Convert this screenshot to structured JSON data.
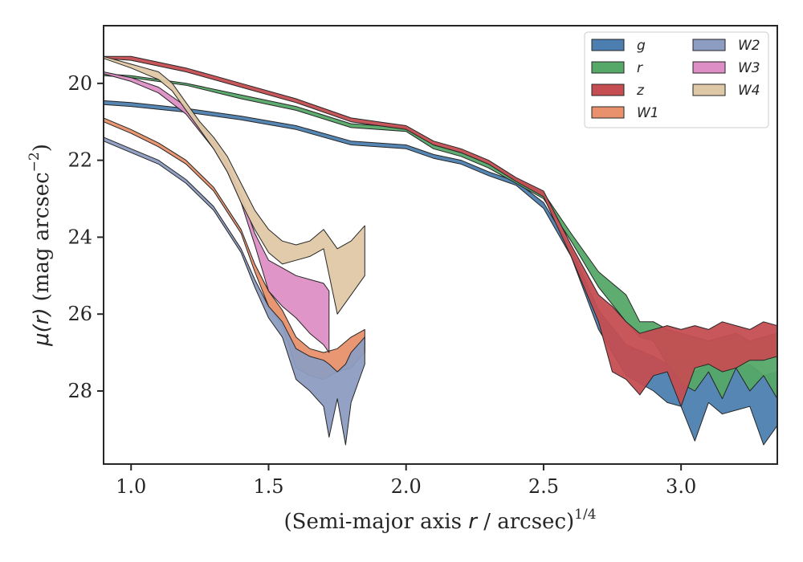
{
  "chart_data": {
    "type": "area",
    "xlabel_main": "(Semi-major axis ",
    "xlabel_var": "r",
    "xlabel_tail": " / arcsec)",
    "xlabel_sup": "1/4",
    "ylabel_main": "(mag arcsec",
    "ylabel_sup": "−2",
    "ylabel_close": ")",
    "ylabel_var": "μ(r)",
    "xlim": [
      0.9,
      3.35
    ],
    "ylim": [
      29.9,
      18.5
    ],
    "y_inverted": true,
    "xticks": [
      1.0,
      1.5,
      2.0,
      2.5,
      3.0
    ],
    "xtick_labels": [
      "1.0",
      "1.5",
      "2.0",
      "2.5",
      "3.0"
    ],
    "yticks": [
      20,
      22,
      24,
      26,
      28
    ],
    "ytick_labels": [
      "20",
      "22",
      "24",
      "26",
      "28"
    ],
    "grid": false,
    "legend_position": "top-right",
    "legend_columns": 2,
    "series": [
      {
        "name": "g",
        "color": "#4c7fb0",
        "x": [
          0.9,
          1.0,
          1.2,
          1.4,
          1.6,
          1.8,
          1.9,
          2.0,
          2.1,
          2.2,
          2.3,
          2.4,
          2.5,
          2.6,
          2.7,
          2.8,
          2.9,
          2.95,
          3.0,
          3.05,
          3.1,
          3.15,
          3.2,
          3.25,
          3.3,
          3.35
        ],
        "lower": [
          20.45,
          20.5,
          20.65,
          20.85,
          21.1,
          21.5,
          21.55,
          21.6,
          21.85,
          22.0,
          22.3,
          22.55,
          23.1,
          24.3,
          25.9,
          26.8,
          27.1,
          27.3,
          27.2,
          27.5,
          27.3,
          27.5,
          27.4,
          27.3,
          27.6,
          27.5
        ],
        "upper": [
          20.55,
          20.6,
          20.75,
          20.95,
          21.2,
          21.6,
          21.65,
          21.7,
          21.95,
          22.1,
          22.4,
          22.65,
          23.25,
          24.5,
          26.4,
          27.6,
          28.0,
          28.3,
          28.4,
          29.3,
          28.3,
          28.6,
          28.5,
          28.4,
          29.4,
          28.9
        ]
      },
      {
        "name": "r",
        "color": "#55a868",
        "x": [
          0.9,
          1.0,
          1.2,
          1.4,
          1.6,
          1.8,
          1.9,
          2.0,
          2.1,
          2.2,
          2.3,
          2.4,
          2.5,
          2.6,
          2.7,
          2.8,
          2.85,
          2.9,
          2.95,
          3.0,
          3.05,
          3.1,
          3.15,
          3.2,
          3.25,
          3.3,
          3.35
        ],
        "lower": [
          19.75,
          19.8,
          20.0,
          20.3,
          20.6,
          21.05,
          21.1,
          21.15,
          21.6,
          21.8,
          22.1,
          22.5,
          22.85,
          23.9,
          24.9,
          25.5,
          26.2,
          26.2,
          26.4,
          26.5,
          26.6,
          26.7,
          26.6,
          26.5,
          26.7,
          26.6,
          26.5
        ],
        "upper": [
          19.8,
          19.85,
          20.05,
          20.4,
          20.7,
          21.15,
          21.2,
          21.25,
          21.7,
          21.9,
          22.2,
          22.6,
          23.0,
          24.1,
          25.3,
          26.2,
          26.6,
          26.7,
          27.3,
          27.8,
          28.0,
          27.5,
          28.2,
          27.4,
          28.0,
          27.6,
          28.2
        ]
      },
      {
        "name": "z",
        "color": "#c44e52",
        "x": [
          0.9,
          1.0,
          1.2,
          1.4,
          1.6,
          1.8,
          1.9,
          2.0,
          2.1,
          2.2,
          2.3,
          2.4,
          2.5,
          2.6,
          2.7,
          2.75,
          2.8,
          2.85,
          2.9,
          2.95,
          3.0,
          3.05,
          3.1,
          3.15,
          3.2,
          3.25,
          3.3,
          3.35
        ],
        "lower": [
          19.3,
          19.3,
          19.6,
          20.0,
          20.4,
          20.9,
          21.0,
          21.1,
          21.5,
          21.7,
          22.0,
          22.45,
          22.8,
          24.2,
          25.5,
          25.8,
          26.2,
          26.5,
          26.4,
          26.3,
          26.4,
          26.3,
          26.4,
          26.2,
          26.3,
          26.4,
          26.2,
          26.3
        ],
        "upper": [
          19.35,
          19.4,
          19.7,
          20.1,
          20.5,
          21.0,
          21.1,
          21.2,
          21.6,
          21.8,
          22.1,
          22.55,
          22.95,
          24.5,
          26.2,
          27.5,
          27.7,
          28.1,
          27.6,
          27.5,
          28.4,
          27.4,
          27.3,
          27.5,
          27.4,
          27.2,
          27.2,
          27.1
        ]
      },
      {
        "name": "W1",
        "color": "#e8916c",
        "x": [
          0.9,
          1.0,
          1.1,
          1.2,
          1.3,
          1.4,
          1.45,
          1.5,
          1.55,
          1.6,
          1.65,
          1.7,
          1.75,
          1.8,
          1.85
        ],
        "lower": [
          20.9,
          21.2,
          21.55,
          22.0,
          22.7,
          23.8,
          24.7,
          25.4,
          25.9,
          26.6,
          26.9,
          27.0,
          26.9,
          26.6,
          26.4
        ],
        "upper": [
          21.0,
          21.3,
          21.65,
          22.1,
          22.8,
          23.9,
          24.9,
          25.8,
          26.3,
          27.4,
          27.6,
          27.7,
          27.5,
          27.4,
          27.0
        ]
      },
      {
        "name": "W2",
        "color": "#8d9cc1",
        "x": [
          0.9,
          1.0,
          1.1,
          1.2,
          1.3,
          1.4,
          1.45,
          1.5,
          1.55,
          1.6,
          1.65,
          1.7,
          1.72,
          1.75,
          1.78,
          1.8,
          1.85
        ],
        "lower": [
          21.4,
          21.7,
          22.0,
          22.5,
          23.2,
          24.3,
          25.1,
          25.8,
          26.2,
          26.9,
          27.1,
          27.2,
          27.3,
          27.5,
          27.3,
          27.0,
          26.6
        ],
        "upper": [
          21.5,
          21.8,
          22.1,
          22.6,
          23.3,
          24.4,
          25.3,
          26.1,
          26.6,
          27.7,
          28.0,
          28.4,
          29.2,
          28.2,
          29.4,
          28.3,
          27.3
        ]
      },
      {
        "name": "W3",
        "color": "#dd8fc5",
        "x": [
          0.9,
          1.0,
          1.1,
          1.2,
          1.3,
          1.35,
          1.4,
          1.45,
          1.5,
          1.55,
          1.6,
          1.65,
          1.7,
          1.72
        ],
        "lower": [
          19.7,
          19.85,
          20.1,
          20.6,
          21.5,
          22.1,
          22.9,
          23.9,
          24.6,
          24.8,
          25.0,
          25.1,
          25.2,
          25.4
        ],
        "upper": [
          19.75,
          19.95,
          20.25,
          20.8,
          21.7,
          22.3,
          23.1,
          24.2,
          25.4,
          25.8,
          26.1,
          26.5,
          26.8,
          27.0
        ]
      },
      {
        "name": "W4",
        "color": "#dfc8a6",
        "x": [
          0.9,
          1.0,
          1.05,
          1.1,
          1.15,
          1.2,
          1.25,
          1.3,
          1.35,
          1.4,
          1.45,
          1.5,
          1.55,
          1.6,
          1.65,
          1.7,
          1.75,
          1.8,
          1.85
        ],
        "lower": [
          19.3,
          19.5,
          19.6,
          19.7,
          20.0,
          20.5,
          21.0,
          21.4,
          21.9,
          22.6,
          23.3,
          23.8,
          24.1,
          24.2,
          24.1,
          23.8,
          24.3,
          24.1,
          23.7
        ],
        "upper": [
          19.35,
          19.6,
          19.75,
          19.9,
          20.2,
          20.7,
          21.2,
          21.7,
          22.3,
          23.1,
          23.8,
          24.4,
          24.7,
          24.6,
          24.5,
          24.3,
          26.0,
          25.5,
          25.0
        ]
      }
    ]
  }
}
